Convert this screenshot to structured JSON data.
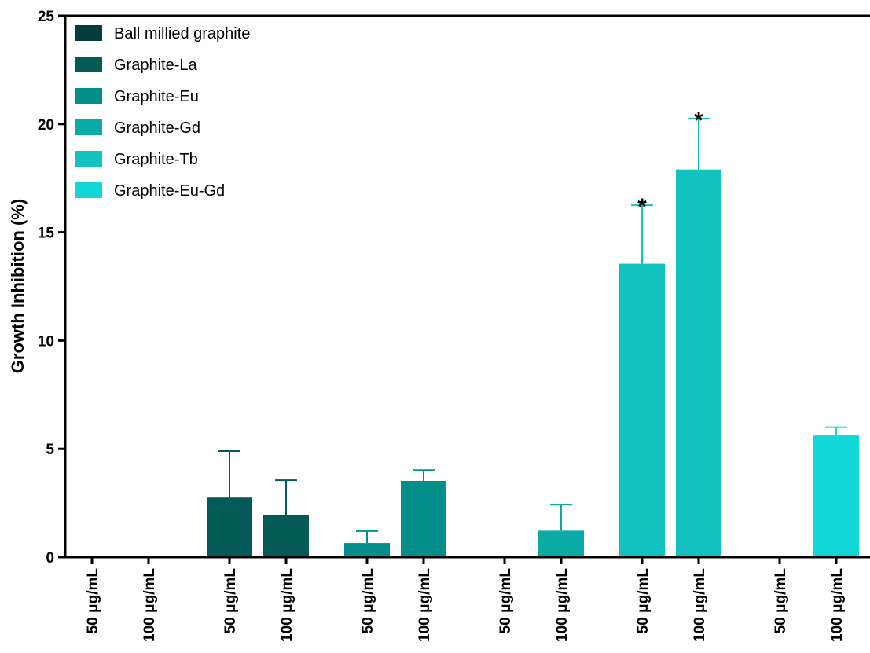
{
  "chart_data": {
    "type": "bar",
    "ylabel": "Growth Inhibition (%)",
    "ylim": [
      0,
      25
    ],
    "yticks": [
      "0",
      "5",
      "10",
      "15",
      "20",
      "25"
    ],
    "series": [
      {
        "name": "Ball millied graphite",
        "color": "#063c3c",
        "labels": [
          "50 μg/mL",
          "100 μg/mL"
        ],
        "values": [
          0,
          0
        ],
        "errors": [
          0,
          0
        ],
        "significance": [
          "",
          ""
        ]
      },
      {
        "name": "Graphite-La",
        "color": "#035a57",
        "labels": [
          "50 μg/mL",
          "100 μg/mL"
        ],
        "values": [
          2.75,
          1.95
        ],
        "errors": [
          2.15,
          1.6
        ],
        "significance": [
          "",
          ""
        ]
      },
      {
        "name": "Graphite-Eu",
        "color": "#028f8a",
        "labels": [
          "50 μg/mL",
          "100 μg/mL"
        ],
        "values": [
          0.65,
          3.52
        ],
        "errors": [
          0.55,
          0.5
        ],
        "significance": [
          "",
          ""
        ]
      },
      {
        "name": "Graphite-Gd",
        "color": "#0caaa5",
        "labels": [
          "50 μg/mL",
          "100 μg/mL"
        ],
        "values": [
          0,
          1.22
        ],
        "errors": [
          0,
          1.2
        ],
        "significance": [
          "",
          ""
        ]
      },
      {
        "name": "Graphite-Tb",
        "color": "#12c2bf",
        "labels": [
          "50 μg/mL",
          "100 μg/mL"
        ],
        "values": [
          13.55,
          17.9
        ],
        "errors": [
          2.7,
          2.35
        ],
        "significance": [
          "*",
          "*"
        ]
      },
      {
        "name": "Graphite-Eu-Gd",
        "color": "#12d6d6",
        "labels": [
          "50 μg/mL",
          "100 μg/mL"
        ],
        "values": [
          0,
          5.62
        ],
        "errors": [
          0,
          0.38
        ],
        "significance": [
          "",
          ""
        ]
      }
    ]
  }
}
